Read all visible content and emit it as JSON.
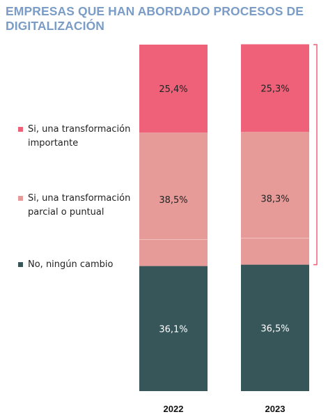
{
  "title_lines": [
    "EMPRESAS QUE HAN ABORDADO PROCESOS DE",
    "DIGITALIZACIÓN"
  ],
  "colors": {
    "title": "#7a9cc6",
    "importante": "#ef6179",
    "parcial": "#e79b99",
    "ninguno": "#37565a",
    "bracket": "#ef6179"
  },
  "legend": [
    {
      "label": "Si, una transformación importante",
      "color": "#ef6179"
    },
    {
      "label": "Si, una transformación parcial o puntual",
      "color": "#e79b99"
    },
    {
      "label": "No, ningún cambio",
      "color": "#37565a"
    }
  ],
  "chart_data": {
    "type": "bar",
    "stacked": true,
    "title": "EMPRESAS QUE HAN ABORDADO PROCESOS DE DIGITALIZACIÓN",
    "categories": [
      "2022",
      "2023"
    ],
    "series": [
      {
        "name": "No, ningún cambio",
        "values": [
          36.1,
          36.5
        ],
        "labels": [
          "36,1%",
          "36,5%"
        ],
        "color": "#37565a"
      },
      {
        "name": "Si, una transformación parcial o puntual",
        "values": [
          38.5,
          38.3
        ],
        "labels": [
          "38,5%",
          "38,3%"
        ],
        "color": "#e79b99"
      },
      {
        "name": "Si, una transformación importante",
        "values": [
          25.4,
          25.3
        ],
        "labels": [
          "25,4%",
          "25,3%"
        ],
        "color": "#ef6179"
      }
    ],
    "legend_position": "left",
    "grid": false
  }
}
